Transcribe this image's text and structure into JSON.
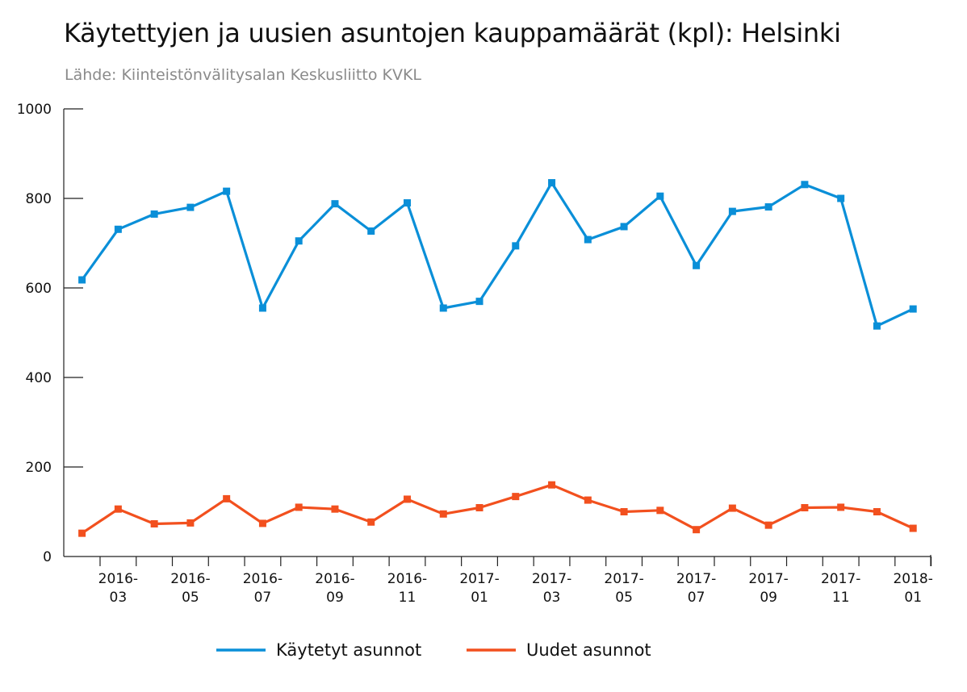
{
  "title": "Käytettyjen ja uusien asuntojen kauppamäärät (kpl): Helsinki",
  "subtitle": "Lähde: Kiinteistönvälitysalan Keskusliitto KVKL",
  "colors": {
    "kaytetyt": "#0a8fd8",
    "uudet": "#f2501e",
    "axis": "#222222"
  },
  "chart_data": {
    "type": "line",
    "title": "Käytettyjen ja uusien asuntojen kauppamäärät (kpl): Helsinki",
    "xlabel": "",
    "ylabel": "",
    "ylim": [
      0,
      1000
    ],
    "yticks": [
      0,
      200,
      400,
      600,
      800,
      1000
    ],
    "grid": false,
    "legend_position": "bottom",
    "x": [
      "2016-02",
      "2016-03",
      "2016-04",
      "2016-05",
      "2016-06",
      "2016-07",
      "2016-08",
      "2016-09",
      "2016-10",
      "2016-11",
      "2016-12",
      "2017-01",
      "2017-02",
      "2017-03",
      "2017-04",
      "2017-05",
      "2017-06",
      "2017-07",
      "2017-08",
      "2017-09",
      "2017-10",
      "2017-11",
      "2017-12",
      "2018-01"
    ],
    "xtick_labels": [
      {
        "index": 1,
        "line1": "2016-",
        "line2": "03"
      },
      {
        "index": 3,
        "line1": "2016-",
        "line2": "05"
      },
      {
        "index": 5,
        "line1": "2016-",
        "line2": "07"
      },
      {
        "index": 7,
        "line1": "2016-",
        "line2": "09"
      },
      {
        "index": 9,
        "line1": "2016-",
        "line2": "11"
      },
      {
        "index": 11,
        "line1": "2017-",
        "line2": "01"
      },
      {
        "index": 13,
        "line1": "2017-",
        "line2": "03"
      },
      {
        "index": 15,
        "line1": "2017-",
        "line2": "05"
      },
      {
        "index": 17,
        "line1": "2017-",
        "line2": "07"
      },
      {
        "index": 19,
        "line1": "2017-",
        "line2": "09"
      },
      {
        "index": 21,
        "line1": "2017-",
        "line2": "11"
      },
      {
        "index": 23,
        "line1": "2018-",
        "line2": "01"
      }
    ],
    "series": [
      {
        "name": "Käytetyt asunnot",
        "color": "#0a8fd8",
        "values": [
          618,
          731,
          765,
          780,
          816,
          555,
          705,
          788,
          727,
          790,
          555,
          570,
          694,
          835,
          708,
          737,
          805,
          650,
          771,
          781,
          831,
          800,
          515,
          553
        ]
      },
      {
        "name": "Uudet asunnot",
        "color": "#f2501e",
        "values": [
          52,
          106,
          73,
          75,
          129,
          74,
          110,
          106,
          77,
          128,
          95,
          109,
          134,
          160,
          126,
          100,
          103,
          60,
          108,
          70,
          109,
          110,
          100,
          63
        ]
      }
    ]
  }
}
